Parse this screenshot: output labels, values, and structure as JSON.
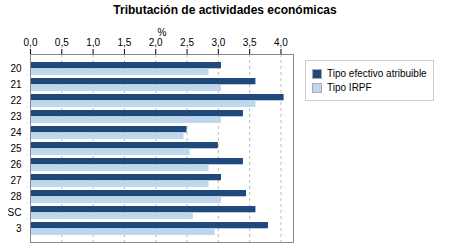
{
  "chart_data": {
    "type": "bar",
    "orientation": "horizontal",
    "title": "Tributación de actividades económicas",
    "xlabel": "%",
    "categories": [
      "20",
      "21",
      "22",
      "23",
      "24",
      "25",
      "26",
      "27",
      "28",
      "SC",
      "3"
    ],
    "series": [
      {
        "name": "Tipo efectivo atribuible",
        "color": "#1F497D",
        "values": [
          3.05,
          3.6,
          4.05,
          3.4,
          2.5,
          3.0,
          3.4,
          3.05,
          3.45,
          3.6,
          3.8
        ]
      },
      {
        "name": "Tipo IRPF",
        "color": "#BDD7EE",
        "values": [
          2.85,
          3.05,
          3.6,
          3.05,
          2.45,
          2.55,
          2.85,
          2.85,
          3.05,
          2.6,
          2.95
        ]
      }
    ],
    "xlim": [
      0,
      4.2
    ],
    "xticks": [
      {
        "value": 0.0,
        "label": "0,0"
      },
      {
        "value": 0.5,
        "label": "0,5"
      },
      {
        "value": 1.0,
        "label": "1,0"
      },
      {
        "value": 1.5,
        "label": "1,5"
      },
      {
        "value": 2.0,
        "label": "2,0"
      },
      {
        "value": 2.5,
        "label": "2,5"
      },
      {
        "value": 3.0,
        "label": "3,0"
      },
      {
        "value": 3.5,
        "label": "3,5"
      },
      {
        "value": 4.0,
        "label": "4,0"
      }
    ],
    "grid": true,
    "legend": "right"
  }
}
